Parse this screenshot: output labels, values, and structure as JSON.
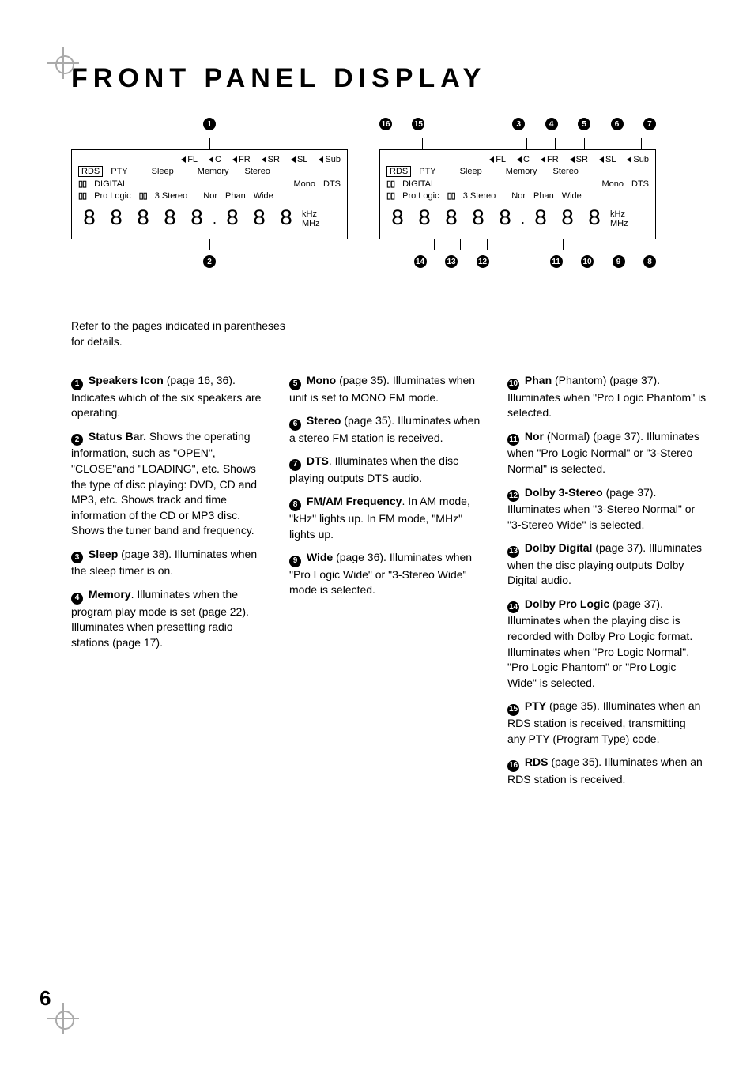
{
  "colors": {
    "text": "#000000",
    "bg": "#ffffff",
    "regmark": "#aaaaaa"
  },
  "typography": {
    "title_fontsize": 34,
    "title_letter_spacing": 7,
    "title_weight": 900,
    "body_fontsize": 14,
    "panel_fontsize": 11
  },
  "title": "FRONT PANEL DISPLAY",
  "intro": "Refer to the pages indicated in parentheses for details.",
  "page_number": "6",
  "display": {
    "speakers": [
      "FL",
      "C",
      "FR",
      "SR",
      "SL",
      "Sub"
    ],
    "row2_left": "RDS",
    "row2a": "PTY",
    "row2b": "Sleep",
    "row2c": "Memory",
    "row2d": "Stereo",
    "row3a": "DIGITAL",
    "row3b": "Mono",
    "row3c": "DTS",
    "row4a": "Pro Logic",
    "row4b": "3 Stereo",
    "row4c": "Nor",
    "row4d": "Phan",
    "row4e": "Wide",
    "units1": "kHz",
    "units2": "MHz",
    "dd_glyph": "▯▯"
  },
  "panel1": {
    "top_callouts": [
      "1"
    ],
    "bottom_callouts": [
      "2"
    ]
  },
  "panel2": {
    "top_callouts": [
      "16",
      "15",
      "3",
      "4",
      "5",
      "6",
      "7"
    ],
    "bottom_callouts": [
      "14",
      "13",
      "12",
      "11",
      "10",
      "9",
      "8"
    ]
  },
  "items_col1": [
    {
      "n": "1",
      "bold": "Speakers Icon",
      "rest": " (page 16, 36). Indicates which of the six speakers are operating."
    },
    {
      "n": "2",
      "bold": "Status Bar.",
      "rest": " Shows the operating information, such as \"OPEN\", \"CLOSE\"and \"LOADING\", etc. Shows the type of disc playing: DVD, CD and MP3, etc. Shows track and time information of the CD or MP3 disc. Shows the tuner band and frequency."
    },
    {
      "n": "3",
      "bold": "Sleep",
      "rest": " (page 38). Illuminates when the sleep timer is on."
    },
    {
      "n": "4",
      "bold": "Memory",
      "rest": ". Illuminates when the program play mode is set (page 22). Illuminates when presetting radio stations (page 17)."
    }
  ],
  "items_col2": [
    {
      "n": "5",
      "bold": "Mono",
      "rest": " (page 35). Illuminates when unit is set to MONO FM mode."
    },
    {
      "n": "6",
      "bold": "Stereo",
      "rest": " (page 35). Illuminates when a stereo FM station is received."
    },
    {
      "n": "7",
      "bold": "DTS",
      "rest": ". Illuminates when the disc playing outputs DTS audio."
    },
    {
      "n": "8",
      "bold": "FM/AM Frequency",
      "rest": ". In AM mode, \"kHz\" lights up. In FM mode, \"MHz\" lights up."
    },
    {
      "n": "9",
      "bold": "Wide",
      "rest": " (page 36). Illuminates when \"Pro Logic Wide\" or \"3-Stereo Wide\" mode is selected."
    }
  ],
  "items_col3": [
    {
      "n": "10",
      "bold": "Phan",
      "rest": " (Phantom) (page 37). Illuminates when \"Pro Logic Phantom\" is selected."
    },
    {
      "n": "11",
      "bold": "Nor",
      "rest": " (Normal) (page 37). Illuminates when \"Pro Logic Normal\" or \"3-Stereo Normal\" is selected."
    },
    {
      "n": "12",
      "bold": "Dolby 3-Stereo",
      "rest": " (page 37). Illuminates when \"3-Stereo Normal\" or \"3-Stereo Wide\" is selected."
    },
    {
      "n": "13",
      "bold": "Dolby Digital",
      "rest": " (page 37). Illuminates when the disc playing outputs Dolby Digital audio."
    },
    {
      "n": "14",
      "bold": "Dolby Pro Logic",
      "rest": " (page 37). Illuminates when the playing disc is recorded with Dolby Pro Logic format. Illuminates when \"Pro Logic Normal\", \"Pro Logic Phantom\" or \"Pro Logic Wide\" is selected."
    },
    {
      "n": "15",
      "bold": "PTY",
      "rest": " (page 35). Illuminates when an RDS station is received, transmitting any PTY (Program Type) code."
    },
    {
      "n": "16",
      "bold": "RDS",
      "rest": " (page 35). Illuminates when an RDS station is received."
    }
  ]
}
